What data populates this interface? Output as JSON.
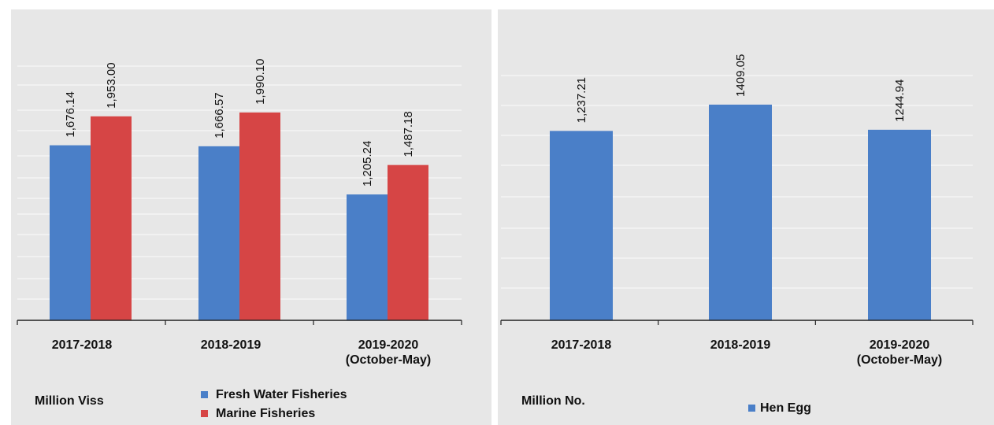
{
  "chart_data": [
    {
      "type": "bar",
      "categories": [
        "2017-2018",
        "2018-2019",
        "2019-2020\n(October-May)"
      ],
      "series": [
        {
          "name": "Fresh Water Fisheries",
          "color": "#4a7fc8",
          "values": [
            1676.14,
            1666.57,
            1205.24
          ],
          "labels": [
            "1,676.14",
            "1,666.57",
            "1,205.24"
          ]
        },
        {
          "name": "Marine Fisheries",
          "color": "#d64545",
          "values": [
            1953.0,
            1990.1,
            1487.18
          ],
          "labels": [
            "1,953.00",
            "1,990.10",
            "1,487.18"
          ]
        }
      ],
      "unit_label": "Million Viss",
      "ylim": [
        0,
        3400
      ],
      "grid": true,
      "legend": "bottom"
    },
    {
      "type": "bar",
      "categories": [
        "2017-2018",
        "2018-2019",
        "2019-2020\n(October-May)"
      ],
      "series": [
        {
          "name": "Hen Egg",
          "color": "#4a7fc8",
          "values": [
            1237.21,
            1409.05,
            1244.94
          ],
          "labels": [
            "1,237.21",
            "1409.05",
            "1244.94"
          ]
        }
      ],
      "unit_label": "Million No.",
      "ylim": [
        0,
        2100
      ],
      "grid": true,
      "legend": "bottom"
    }
  ]
}
